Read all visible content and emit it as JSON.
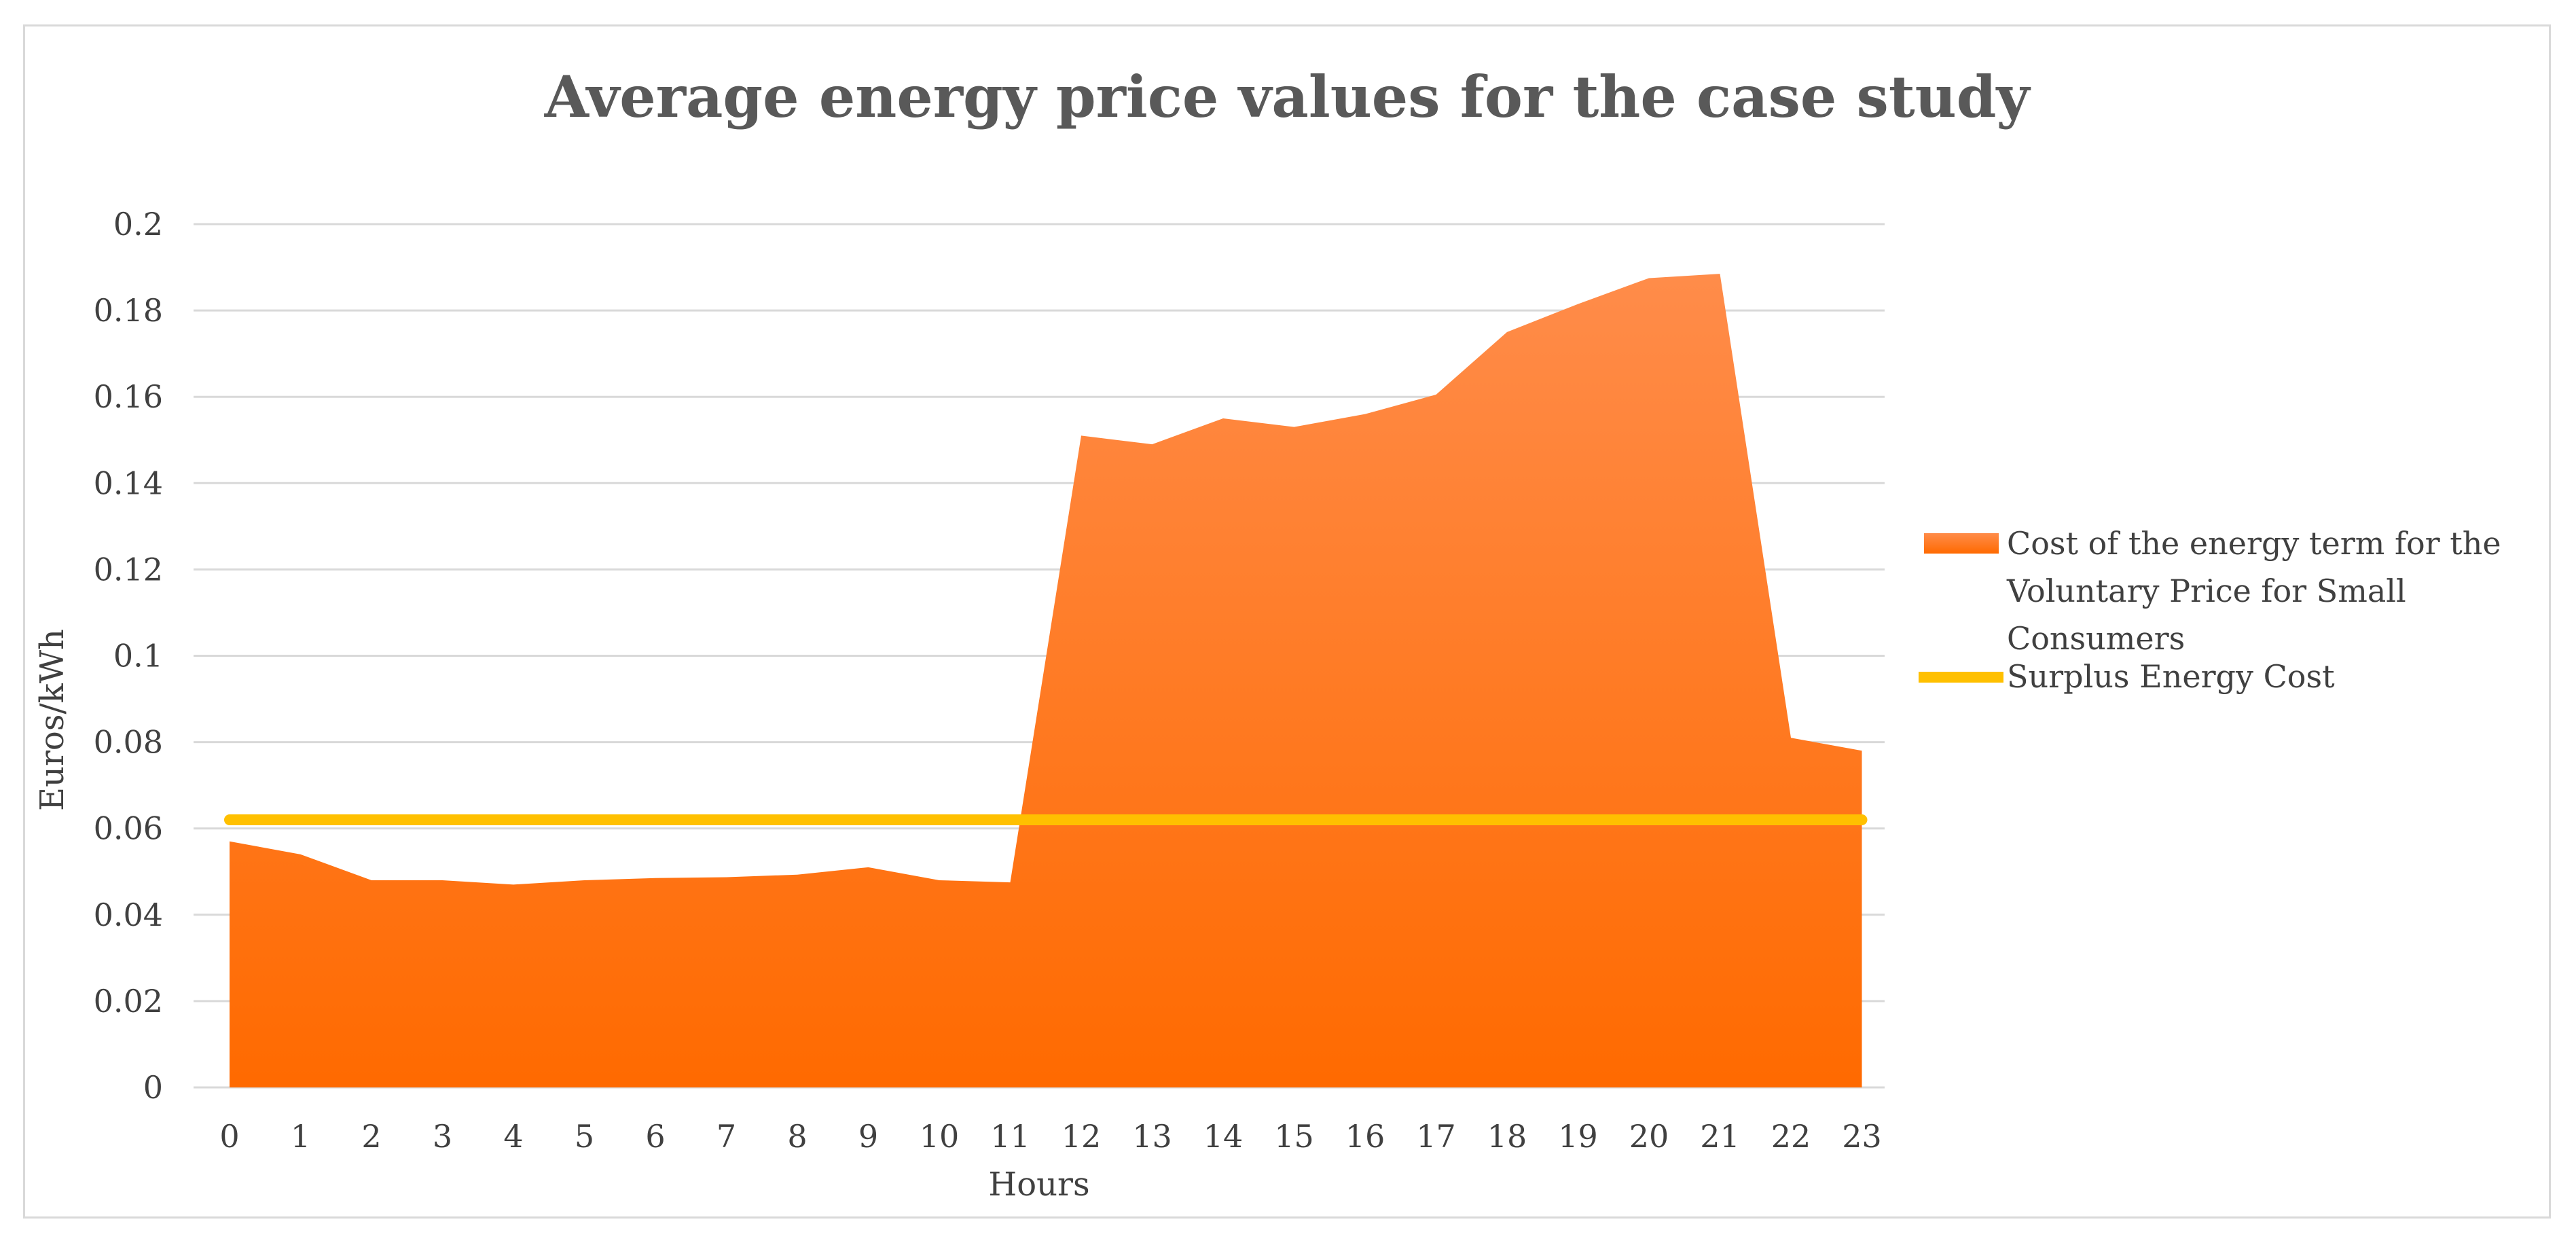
{
  "chart_data": {
    "type": "area",
    "title": "Average energy price values for the case study",
    "xlabel": "Hours",
    "ylabel": "Euros/kWh",
    "ylim": [
      0,
      0.2
    ],
    "yticks": [
      0,
      0.02,
      0.04,
      0.06,
      0.08,
      0.1,
      0.12,
      0.14,
      0.16,
      0.18,
      0.2
    ],
    "ytick_labels": [
      "0",
      "0.02",
      "0.04",
      "0.06",
      "0.08",
      "0.1",
      "0.12",
      "0.14",
      "0.16",
      "0.18",
      "0.2"
    ],
    "categories": [
      "0",
      "1",
      "2",
      "3",
      "4",
      "5",
      "6",
      "7",
      "8",
      "9",
      "10",
      "11",
      "12",
      "13",
      "14",
      "15",
      "16",
      "17",
      "18",
      "19",
      "20",
      "21",
      "22",
      "23"
    ],
    "grid": true,
    "legend_position": "right",
    "series": [
      {
        "name": "Cost of the energy term for the Voluntary Price for Small Consumers",
        "legend_lines": [
          "Cost of the energy term for the",
          "Voluntary Price for Small",
          "Consumers"
        ],
        "kind": "area",
        "color_top": "#ff8c4a",
        "color_bottom": "#ff6a00",
        "values": [
          0.057,
          0.054,
          0.048,
          0.048,
          0.047,
          0.048,
          0.0485,
          0.0487,
          0.0493,
          0.051,
          0.048,
          0.0475,
          0.151,
          0.149,
          0.155,
          0.153,
          0.156,
          0.1605,
          0.175,
          0.1815,
          0.1875,
          0.1885,
          0.081,
          0.078
        ]
      },
      {
        "name": "Surplus Energy Cost",
        "kind": "line",
        "color": "#ffc000",
        "values": [
          0.062,
          0.062,
          0.062,
          0.062,
          0.062,
          0.062,
          0.062,
          0.062,
          0.062,
          0.062,
          0.062,
          0.062,
          0.062,
          0.062,
          0.062,
          0.062,
          0.062,
          0.062,
          0.062,
          0.062,
          0.062,
          0.062,
          0.062,
          0.062
        ]
      }
    ]
  }
}
